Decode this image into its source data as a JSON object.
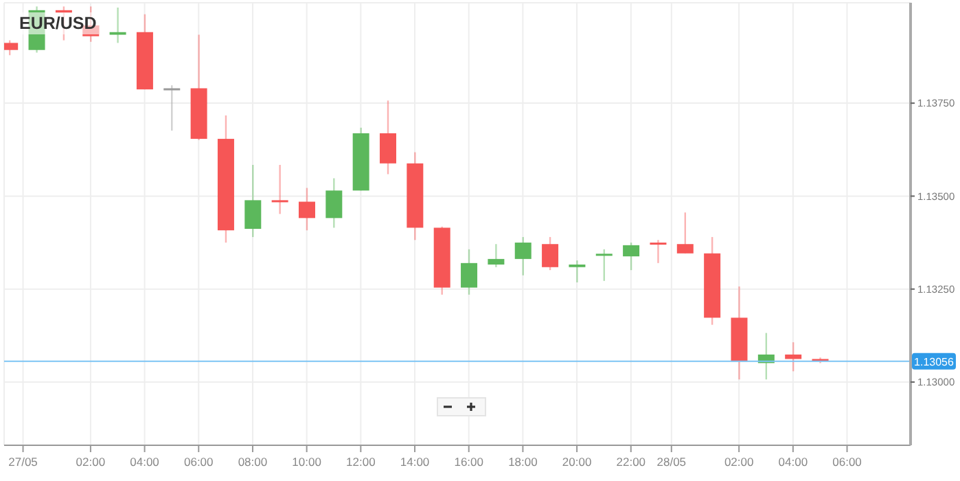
{
  "chart_data": {
    "type": "candlestick",
    "title": "EUR/USD",
    "x": [
      "--05-26T23:00",
      "--05-27T00:00",
      "--05-27T01:00",
      "--05-27T02:00",
      "--05-27T03:00",
      "--05-27T04:00",
      "--05-27T05:00",
      "--05-27T06:00",
      "--05-27T07:00",
      "--05-27T08:00",
      "--05-27T09:00",
      "--05-27T10:00",
      "--05-27T11:00",
      "--05-27T12:00",
      "--05-27T13:00",
      "--05-27T14:00",
      "--05-27T15:00",
      "--05-27T16:00",
      "--05-27T17:00",
      "--05-27T18:00",
      "--05-27T19:00",
      "--05-27T20:00",
      "--05-27T21:00",
      "--05-27T22:00",
      "--05-27T23:00",
      "--05-28T00:00",
      "--05-28T01:00",
      "--05-28T02:00",
      "--05-28T03:00",
      "--05-28T04:00",
      "--05-28T05:00"
    ],
    "ohlc": [
      [
        1.13912,
        1.13919,
        1.13879,
        1.13893
      ],
      [
        1.13893,
        1.1401,
        1.13886,
        1.14
      ],
      [
        1.14,
        1.1401,
        1.13919,
        1.13993
      ],
      [
        1.13959,
        1.1401,
        1.13915,
        1.1393
      ],
      [
        1.13934,
        1.14007,
        1.13912,
        1.13941
      ],
      [
        1.13941,
        1.13989,
        1.13787,
        1.13787
      ],
      [
        1.1379,
        1.13798,
        1.13676,
        1.1379
      ],
      [
        1.1379,
        1.13934,
        1.13651,
        1.13654
      ],
      [
        1.13654,
        1.13717,
        1.13375,
        1.13408
      ],
      [
        1.13412,
        1.13584,
        1.1339,
        1.13489
      ],
      [
        1.13489,
        1.13584,
        1.13452,
        1.13485
      ],
      [
        1.13485,
        1.13522,
        1.13408,
        1.13441
      ],
      [
        1.13441,
        1.13548,
        1.13415,
        1.13515
      ],
      [
        1.13515,
        1.13684,
        1.13515,
        1.13669
      ],
      [
        1.13669,
        1.13757,
        1.13559,
        1.13588
      ],
      [
        1.13588,
        1.13618,
        1.13382,
        1.13415
      ],
      [
        1.13415,
        1.13418,
        1.13235,
        1.13254
      ],
      [
        1.13254,
        1.13357,
        1.13235,
        1.1332
      ],
      [
        1.13316,
        1.13371,
        1.13309,
        1.13331
      ],
      [
        1.13331,
        1.1339,
        1.13287,
        1.13375
      ],
      [
        1.13371,
        1.1339,
        1.13301,
        1.13309
      ],
      [
        1.13309,
        1.13327,
        1.13268,
        1.13316
      ],
      [
        1.13342,
        1.13357,
        1.13272,
        1.13345
      ],
      [
        1.13338,
        1.13375,
        1.13301,
        1.13368
      ],
      [
        1.13375,
        1.13382,
        1.1332,
        1.13371
      ],
      [
        1.13371,
        1.13456,
        1.13346,
        1.13346
      ],
      [
        1.13346,
        1.1339,
        1.13154,
        1.13173
      ],
      [
        1.13173,
        1.13257,
        1.13007,
        1.13055
      ],
      [
        1.13051,
        1.13132,
        1.13007,
        1.13074
      ],
      [
        1.13074,
        1.13107,
        1.13029,
        1.13062
      ],
      [
        1.13062,
        1.13066,
        1.13051,
        1.13056
      ]
    ],
    "colors": [
      "#f65656",
      "#5cb85c",
      "#f65656",
      "#f65656",
      "#5cb85c",
      "#f65656",
      "#999999",
      "#f65656",
      "#f65656",
      "#5cb85c",
      "#f65656",
      "#f65656",
      "#5cb85c",
      "#5cb85c",
      "#f65656",
      "#f65656",
      "#f65656",
      "#5cb85c",
      "#5cb85c",
      "#5cb85c",
      "#f65656",
      "#5cb85c",
      "#5cb85c",
      "#5cb85c",
      "#f65656",
      "#f65656",
      "#f65656",
      "#f65656",
      "#5cb85c",
      "#f65656",
      "#f65656"
    ],
    "xlim": [
      "--05-26T22:48",
      "--05-28T08:21"
    ],
    "xticks": [
      {
        "value": "--05-26T23:30",
        "label": "27/05"
      },
      {
        "value": "--05-27T02:00",
        "label": "02:00"
      },
      {
        "value": "--05-27T04:00",
        "label": "04:00"
      },
      {
        "value": "--05-27T06:00",
        "label": "06:00"
      },
      {
        "value": "--05-27T08:00",
        "label": "08:00"
      },
      {
        "value": "--05-27T10:00",
        "label": "10:00"
      },
      {
        "value": "--05-27T12:00",
        "label": "12:00"
      },
      {
        "value": "--05-27T14:00",
        "label": "14:00"
      },
      {
        "value": "--05-27T16:00",
        "label": "16:00"
      },
      {
        "value": "--05-27T18:00",
        "label": "18:00"
      },
      {
        "value": "--05-27T20:00",
        "label": "20:00"
      },
      {
        "value": "--05-27T22:00",
        "label": "22:00"
      },
      {
        "value": "--05-27T23:30",
        "label": "28/05"
      },
      {
        "value": "--05-28T02:00",
        "label": "02:00"
      },
      {
        "value": "--05-28T04:00",
        "label": "04:00"
      },
      {
        "value": "--05-28T06:00",
        "label": "06:00"
      }
    ],
    "ylim": [
      1.1283,
      1.1402
    ],
    "yticks": [
      {
        "value": 1.13,
        "label": "1.13000"
      },
      {
        "value": 1.1325,
        "label": "1.13250"
      },
      {
        "value": 1.135,
        "label": "1.13500"
      },
      {
        "value": 1.1375,
        "label": "1.13750"
      }
    ],
    "grid": true,
    "ref_lines": [
      {
        "axis": "y",
        "value": 1.13056,
        "label": "1.13056",
        "color": "#7cc4f4"
      }
    ]
  }
}
